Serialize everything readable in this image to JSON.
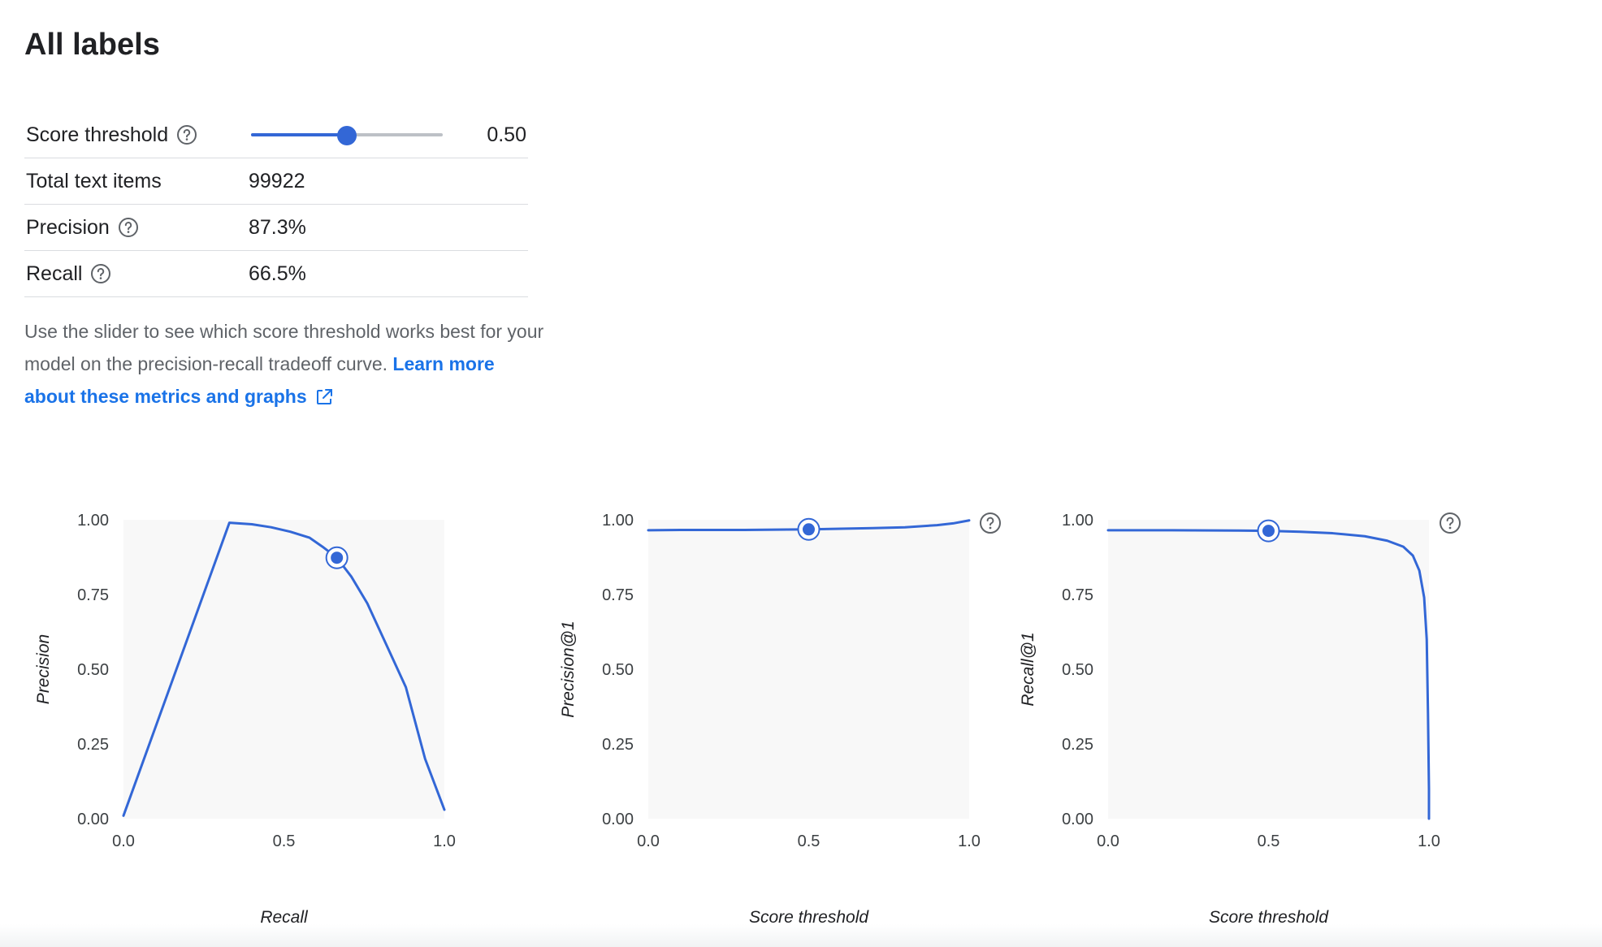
{
  "page": {
    "title": "All labels"
  },
  "metrics": {
    "score_threshold": {
      "label": "Score threshold",
      "value": "0.50",
      "level": 0.5
    },
    "total_items": {
      "label": "Total text items",
      "value": "99922"
    },
    "precision": {
      "label": "Precision",
      "value": "87.3%"
    },
    "recall": {
      "label": "Recall",
      "value": "66.5%"
    }
  },
  "description": {
    "text": "Use the slider to see which score threshold works best for your model on the precision-recall tradeoff curve. ",
    "link": "Learn more about these metrics and graphs"
  },
  "colors": {
    "accent": "#3367d6",
    "link": "#1a73e8",
    "plot_bg": "#f8f8f8",
    "track": "#bdc1c6",
    "divider": "#dadce0"
  },
  "icons": {
    "help": "help-circle-icon",
    "external": "open-in-new-icon"
  },
  "chart_data": [
    {
      "type": "line",
      "title": "",
      "xlabel": "Recall",
      "ylabel": "Precision",
      "xlim": [
        0,
        1
      ],
      "ylim": [
        0,
        1
      ],
      "x_ticks": [
        "0.0",
        "0.5",
        "1.0"
      ],
      "y_ticks": [
        "0.00",
        "0.25",
        "0.50",
        "0.75",
        "1.00"
      ],
      "has_help_icon": false,
      "series": [
        {
          "x": [
            0,
            0.33,
            0.4,
            0.46,
            0.52,
            0.58,
            0.62,
            0.665,
            0.71,
            0.76,
            0.82,
            0.88,
            0.94,
            1.0
          ],
          "y": [
            0.01,
            0.99,
            0.985,
            0.975,
            0.96,
            0.94,
            0.91,
            0.873,
            0.81,
            0.72,
            0.58,
            0.44,
            0.2,
            0.03
          ]
        }
      ],
      "marker": {
        "x": 0.665,
        "y": 0.873
      }
    },
    {
      "type": "line",
      "title": "",
      "xlabel": "Score threshold",
      "ylabel": "Precision@1",
      "xlim": [
        0,
        1
      ],
      "ylim": [
        0,
        1
      ],
      "x_ticks": [
        "0.0",
        "0.5",
        "1.0"
      ],
      "y_ticks": [
        "0.00",
        "0.25",
        "0.50",
        "0.75",
        "1.00"
      ],
      "has_help_icon": true,
      "series": [
        {
          "x": [
            0,
            0.1,
            0.2,
            0.3,
            0.4,
            0.5,
            0.6,
            0.7,
            0.8,
            0.9,
            0.95,
            1.0
          ],
          "y": [
            0.965,
            0.966,
            0.966,
            0.966,
            0.967,
            0.968,
            0.97,
            0.972,
            0.975,
            0.982,
            0.988,
            0.998
          ]
        }
      ],
      "marker": {
        "x": 0.5,
        "y": 0.968
      }
    },
    {
      "type": "line",
      "title": "",
      "xlabel": "Score threshold",
      "ylabel": "Recall@1",
      "xlim": [
        0,
        1
      ],
      "ylim": [
        0,
        1
      ],
      "x_ticks": [
        "0.0",
        "0.5",
        "1.0"
      ],
      "y_ticks": [
        "0.00",
        "0.25",
        "0.50",
        "0.75",
        "1.00"
      ],
      "has_help_icon": true,
      "series": [
        {
          "x": [
            0,
            0.2,
            0.4,
            0.5,
            0.6,
            0.7,
            0.8,
            0.87,
            0.92,
            0.95,
            0.97,
            0.985,
            0.993,
            0.997,
            1.0,
            1.0
          ],
          "y": [
            0.965,
            0.965,
            0.964,
            0.963,
            0.96,
            0.955,
            0.945,
            0.93,
            0.91,
            0.88,
            0.83,
            0.74,
            0.6,
            0.35,
            0.1,
            0.0
          ]
        }
      ],
      "marker": {
        "x": 0.5,
        "y": 0.963
      }
    }
  ]
}
